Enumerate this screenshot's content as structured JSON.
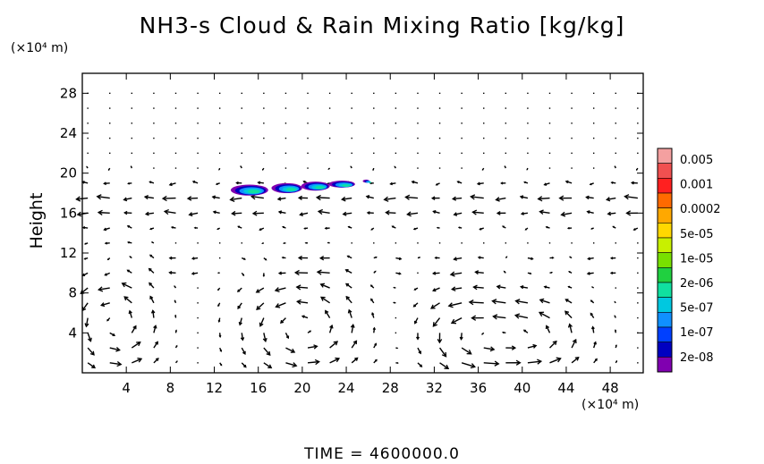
{
  "chart_data": {
    "type": "contour_vector",
    "title": "NH3-s Cloud & Rain Mixing Ratio [kg/kg]",
    "ylabel": "Height",
    "x_unit": "(×10⁴ m)",
    "y_unit": "(×10⁴ m)",
    "xlim": [
      0,
      51
    ],
    "ylim": [
      0,
      30
    ],
    "x_ticks": [
      4,
      8,
      12,
      16,
      20,
      24,
      28,
      32,
      36,
      40,
      44,
      48
    ],
    "y_ticks": [
      4,
      8,
      12,
      16,
      20,
      24,
      28
    ],
    "legend": {
      "placement": "right",
      "levels": [
        "0.005",
        "0.001",
        "0.0002",
        "5e-05",
        "1e-05",
        "2e-06",
        "5e-07",
        "1e-07",
        "2e-08"
      ],
      "colors": [
        "#f4a0a0",
        "#f05050",
        "#ff2020",
        "#ff6a00",
        "#ffa800",
        "#ffd800",
        "#c8f000",
        "#78e000",
        "#20d040",
        "#10e0a0",
        "#00c8e0",
        "#1090ff",
        "#0040ff",
        "#0000c0",
        "#8000b0"
      ]
    },
    "cloud_blobs": [
      {
        "x": 15.2,
        "y": 18.3,
        "rx": 1.7,
        "ry": 0.55
      },
      {
        "x": 18.6,
        "y": 18.5,
        "rx": 1.4,
        "ry": 0.5
      },
      {
        "x": 21.2,
        "y": 18.7,
        "rx": 1.3,
        "ry": 0.45
      },
      {
        "x": 23.6,
        "y": 18.9,
        "rx": 1.2,
        "ry": 0.35
      },
      {
        "x": 25.8,
        "y": 19.2,
        "rx": 0.3,
        "ry": 0.15
      }
    ],
    "vortices": [
      {
        "x": 3,
        "y": 5,
        "rx": 3,
        "ry": 4.5
      },
      {
        "x": 20,
        "y": 4.5,
        "rx": 4.5,
        "ry": 4
      },
      {
        "x": 35,
        "y": 4,
        "rx": 3.5,
        "ry": 3.5
      },
      {
        "x": 41,
        "y": 3.5,
        "rx": 4,
        "ry": 3
      }
    ]
  },
  "footer": {
    "time_label": "TIME = 4600000.0"
  }
}
